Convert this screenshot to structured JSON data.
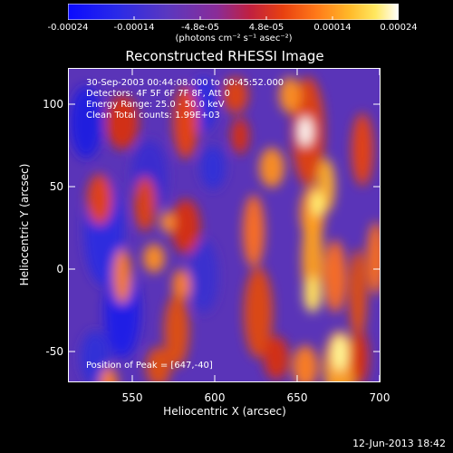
{
  "colorbar": {
    "tick_labels": [
      "-0.00024",
      "-0.00014",
      "-4.8e-05",
      "4.8e-05",
      "0.00014",
      "0.00024"
    ],
    "unit_label": "(photons cm⁻² s⁻¹ asec⁻²)",
    "colors": [
      "#1010ff",
      "#3a28d8",
      "#6a3ab0",
      "#8a30a0",
      "#b01e60",
      "#d83010",
      "#f06010",
      "#ff9020",
      "#ffd030",
      "#ffff80",
      "#ffffff"
    ]
  },
  "plot": {
    "title": "Reconstructed RHESSI Image",
    "info_lines": [
      "30-Sep-2003 00:44:08.000 to 00:45:52.000",
      "Detectors: 4F 5F 6F 7F 8F, Att 0",
      "Energy Range: 25.0 - 50.0 keV",
      "Clean    Total counts: 1.99E+03"
    ],
    "peak_label": "Position of Peak = [647,-40]",
    "xlabel": "Heliocentric X (arcsec)",
    "ylabel": "Heliocentric Y (arcsec)",
    "x_ticks": [
      "550",
      "600",
      "650",
      "700"
    ],
    "y_ticks": [
      "100",
      "50",
      "0",
      "-50"
    ]
  },
  "footer": {
    "timestamp": "12-Jun-2013 18:42"
  },
  "chart_data": {
    "type": "heatmap",
    "title": "Reconstructed RHESSI Image",
    "xlabel": "Heliocentric X (arcsec)",
    "ylabel": "Heliocentric Y (arcsec)",
    "xlim": [
      511,
      702
    ],
    "ylim": [
      -70,
      122
    ],
    "x_ticks": [
      550,
      600,
      650,
      700
    ],
    "y_ticks": [
      -50,
      0,
      50,
      100
    ],
    "colorbar_range": [
      -0.00024,
      0.00024
    ],
    "peak": [
      647,
      -40
    ]
  }
}
